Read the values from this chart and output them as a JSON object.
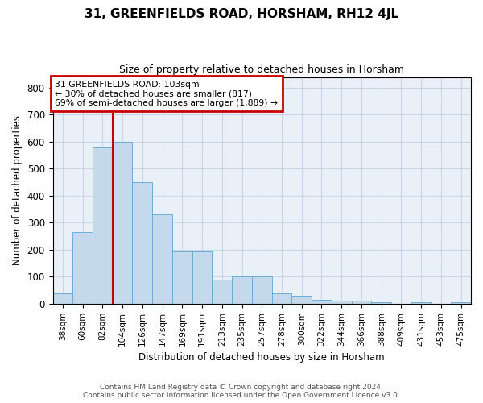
{
  "title": "31, GREENFIELDS ROAD, HORSHAM, RH12 4JL",
  "subtitle": "Size of property relative to detached houses in Horsham",
  "xlabel": "Distribution of detached houses by size in Horsham",
  "ylabel": "Number of detached properties",
  "bar_labels": [
    "38sqm",
    "60sqm",
    "82sqm",
    "104sqm",
    "126sqm",
    "147sqm",
    "169sqm",
    "191sqm",
    "213sqm",
    "235sqm",
    "257sqm",
    "278sqm",
    "300sqm",
    "322sqm",
    "344sqm",
    "366sqm",
    "388sqm",
    "409sqm",
    "431sqm",
    "453sqm",
    "475sqm"
  ],
  "bar_values": [
    38,
    265,
    580,
    600,
    450,
    330,
    195,
    195,
    90,
    100,
    100,
    38,
    30,
    15,
    12,
    10,
    5,
    0,
    5,
    0,
    5
  ],
  "bar_color": "#c5d9ed",
  "bar_edge_color": "#6baed6",
  "property_line_index": 3,
  "annotation_line1": "31 GREENFIELDS ROAD: 103sqm",
  "annotation_line2": "← 30% of detached houses are smaller (817)",
  "annotation_line3": "69% of semi-detached houses are larger (1,889) →",
  "annotation_box_color": "#cc0000",
  "ylim": [
    0,
    840
  ],
  "yticks": [
    0,
    100,
    200,
    300,
    400,
    500,
    600,
    700,
    800
  ],
  "grid_color": "#c8d8ea",
  "background_color": "#eaf0f8",
  "footer_line1": "Contains HM Land Registry data © Crown copyright and database right 2024.",
  "footer_line2": "Contains public sector information licensed under the Open Government Licence v3.0."
}
